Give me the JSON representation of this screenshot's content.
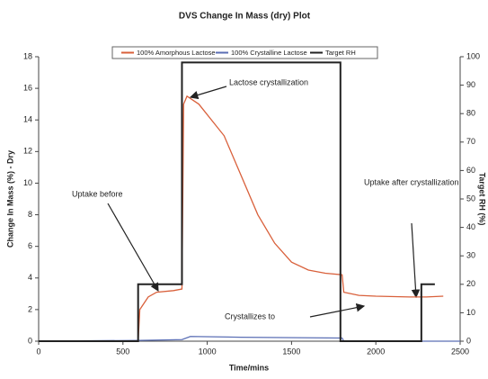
{
  "chart_data": {
    "type": "line",
    "title": "DVS Change In Mass (dry) Plot",
    "x_label": "Time/mins",
    "y_label": "Change In Mass (%) - Dry",
    "y2_label": "Target RH (%)",
    "xlim": [
      0,
      2500
    ],
    "xticks": [
      0,
      500,
      1000,
      1500,
      2000,
      2500
    ],
    "ylim": [
      0,
      18
    ],
    "yticks": [
      0,
      2,
      4,
      6,
      8,
      10,
      12,
      14,
      16,
      18
    ],
    "y2lim": [
      0,
      100
    ],
    "y2ticks": [
      0,
      10,
      20,
      30,
      40,
      50,
      60,
      70,
      80,
      90,
      100
    ],
    "legend": "top",
    "series": [
      {
        "name": "100% Amorphous Lactose",
        "color": "#d9603b",
        "x": [
          0,
          590,
          600,
          650,
          700,
          800,
          850,
          860,
          880,
          950,
          1100,
          1200,
          1300,
          1400,
          1500,
          1600,
          1700,
          1800,
          1810,
          1900,
          2000,
          2200,
          2300,
          2400
        ],
        "values": [
          0,
          0,
          2,
          2.8,
          3.1,
          3.2,
          3.3,
          15.0,
          15.5,
          15.0,
          13,
          10.5,
          8,
          6.2,
          5,
          4.5,
          4.3,
          4.2,
          3.1,
          2.9,
          2.85,
          2.8,
          2.8,
          2.85
        ]
      },
      {
        "name": "100% Crystalline Lactose",
        "color": "#5b6fb5",
        "x": [
          0,
          600,
          850,
          900,
          1200,
          1800,
          1810,
          2500
        ],
        "values": [
          0,
          0.05,
          0.1,
          0.3,
          0.25,
          0.2,
          0,
          0
        ]
      },
      {
        "name": "Target RH",
        "color": "#222222",
        "axis": "y2",
        "x": [
          0,
          590,
          590,
          850,
          850,
          1790,
          1790,
          2270,
          2270,
          2350
        ],
        "values": [
          0,
          0,
          20,
          20,
          98,
          98,
          0,
          0,
          20,
          20
        ]
      }
    ],
    "annotations": [
      "Lactose crystallization",
      "Uptake before",
      "Uptake after crystallization",
      "Crystallizes to"
    ]
  }
}
